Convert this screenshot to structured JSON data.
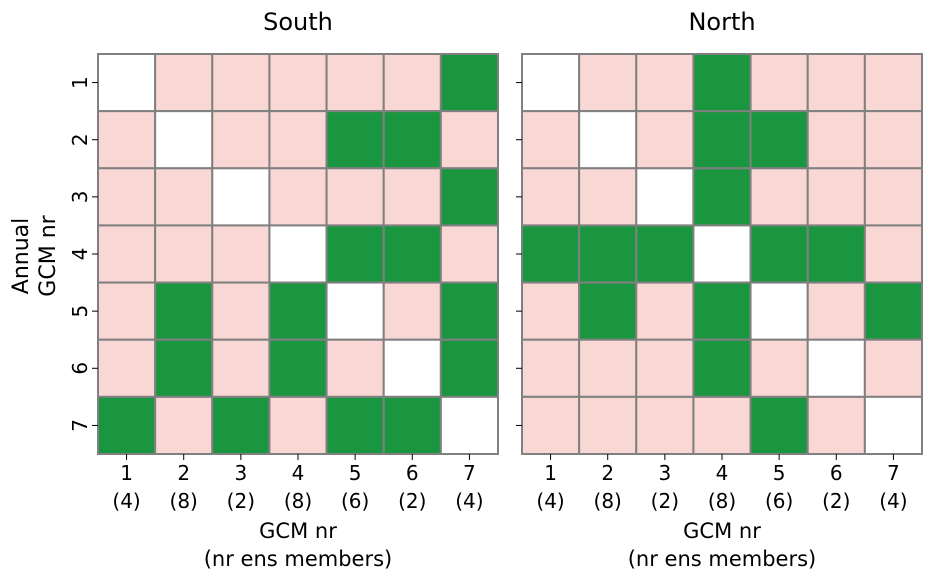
{
  "figure": {
    "ylabel_lines": [
      "Annual",
      "GCM nr"
    ],
    "xlabel_lines": [
      "GCM nr",
      "(nr ens members)"
    ]
  },
  "colors": {
    "significant": "#1b9640",
    "not_significant": "#f9d7d4",
    "diagonal": "#ffffff",
    "grid": "#808080"
  },
  "chart_data": [
    {
      "type": "heatmap",
      "title": "South",
      "row_labels": [
        "1",
        "2",
        "3",
        "4",
        "5",
        "6",
        "7"
      ],
      "col_labels": [
        "1",
        "2",
        "3",
        "4",
        "5",
        "6",
        "7"
      ],
      "col_sublabels": [
        "(4)",
        "(8)",
        "(2)",
        "(8)",
        "(6)",
        "(2)",
        "(4)"
      ],
      "values": [
        [
          null,
          0,
          0,
          0,
          0,
          0,
          1
        ],
        [
          0,
          null,
          0,
          0,
          1,
          1,
          0
        ],
        [
          0,
          0,
          null,
          0,
          0,
          0,
          1
        ],
        [
          0,
          0,
          0,
          null,
          1,
          1,
          0
        ],
        [
          0,
          1,
          0,
          1,
          null,
          0,
          1
        ],
        [
          0,
          1,
          0,
          1,
          0,
          null,
          1
        ],
        [
          1,
          0,
          1,
          0,
          1,
          1,
          null
        ]
      ]
    },
    {
      "type": "heatmap",
      "title": "North",
      "row_labels": [
        "1",
        "2",
        "3",
        "4",
        "5",
        "6",
        "7"
      ],
      "col_labels": [
        "1",
        "2",
        "3",
        "4",
        "5",
        "6",
        "7"
      ],
      "col_sublabels": [
        "(4)",
        "(8)",
        "(2)",
        "(8)",
        "(6)",
        "(2)",
        "(4)"
      ],
      "values": [
        [
          null,
          0,
          0,
          1,
          0,
          0,
          0
        ],
        [
          0,
          null,
          0,
          1,
          1,
          0,
          0
        ],
        [
          0,
          0,
          null,
          1,
          0,
          0,
          0
        ],
        [
          1,
          1,
          1,
          null,
          1,
          1,
          0
        ],
        [
          0,
          1,
          0,
          1,
          null,
          0,
          1
        ],
        [
          0,
          0,
          0,
          1,
          0,
          null,
          0
        ],
        [
          0,
          0,
          0,
          0,
          1,
          0,
          null
        ]
      ]
    }
  ]
}
